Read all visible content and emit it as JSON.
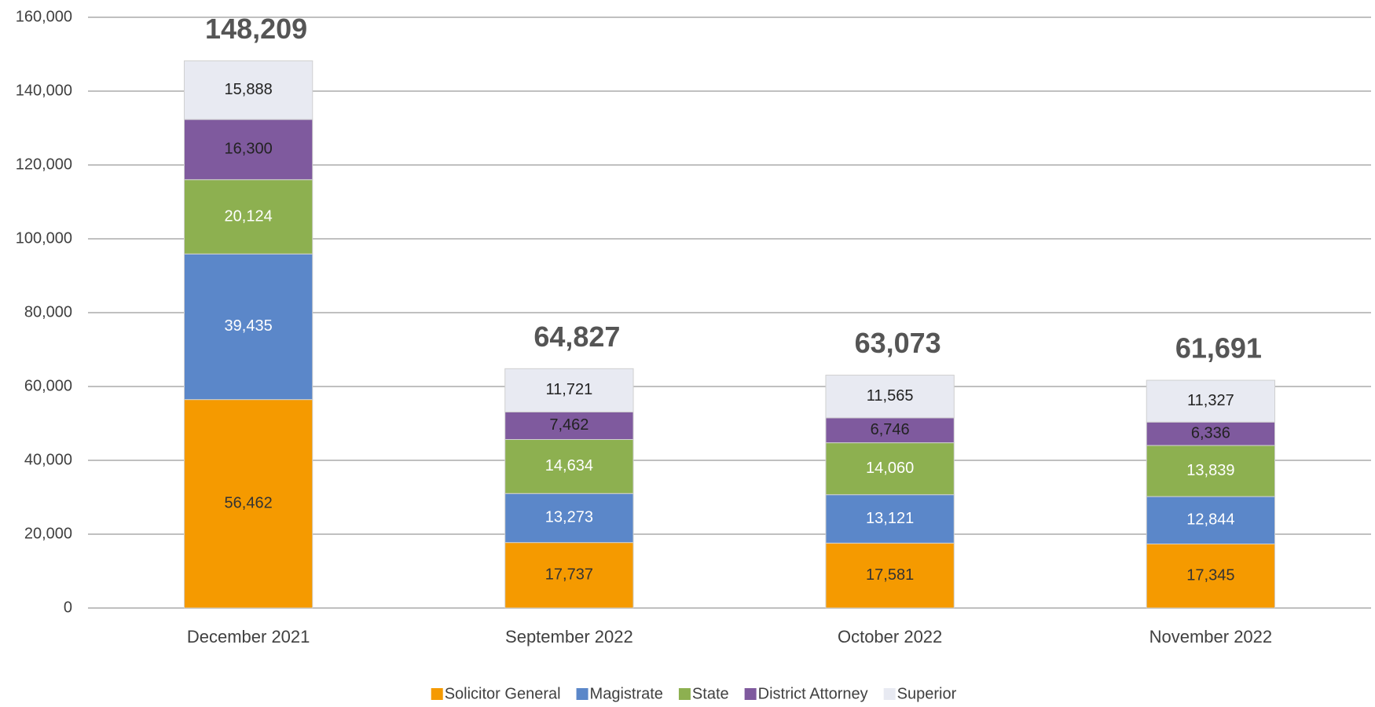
{
  "chart_data": {
    "type": "stacked_bar",
    "categories": [
      "December 2021",
      "September 2022",
      "October 2022",
      "November 2022"
    ],
    "series": [
      {
        "name": "Solicitor General",
        "color": "#f59a00",
        "label_color": "#333333",
        "values": [
          56462,
          17737,
          17581,
          17345
        ],
        "value_labels": [
          "56,462",
          "17,737",
          "17,581",
          "17,345"
        ]
      },
      {
        "name": "Magistrate",
        "color": "#5b87c9",
        "label_color": "#ffffff",
        "values": [
          39435,
          13273,
          13121,
          12844
        ],
        "value_labels": [
          "39,435",
          "13,273",
          "13,121",
          "12,844"
        ]
      },
      {
        "name": "State",
        "color": "#8db050",
        "label_color": "#ffffff",
        "values": [
          20124,
          14634,
          14060,
          13839
        ],
        "value_labels": [
          "20,124",
          "14,634",
          "14,060",
          "13,839"
        ]
      },
      {
        "name": "District Attorney",
        "color": "#7f5a9e",
        "label_color": "#222222",
        "values": [
          16300,
          7462,
          6746,
          6336
        ],
        "value_labels": [
          "16,300",
          "7,462",
          "6,746",
          "6,336"
        ]
      },
      {
        "name": "Superior",
        "color": "#e8eaf2",
        "label_color": "#222222",
        "values": [
          15888,
          11721,
          11565,
          11327
        ],
        "value_labels": [
          "15,888",
          "11,721",
          "11,565",
          "11,327"
        ]
      }
    ],
    "totals": {
      "values": [
        148209,
        64827,
        63073,
        61691
      ],
      "value_labels": [
        "148,209",
        "64,827",
        "63,073",
        "61,691"
      ]
    },
    "ylim": [
      0,
      160000
    ],
    "yticks": [
      0,
      {
        "value": 20000,
        "label": "20,000"
      },
      {
        "value": 40000,
        "label": "40,000"
      },
      {
        "value": 60000,
        "label": "60,000"
      },
      {
        "value": 80000,
        "label": "80,000"
      },
      {
        "value": 100000,
        "label": "100,000"
      },
      {
        "value": 120000,
        "label": "120,000"
      },
      {
        "value": 140000,
        "label": "140,000"
      },
      {
        "value": 160000,
        "label": "160,000"
      }
    ],
    "grid": true,
    "legend": "bottom"
  }
}
